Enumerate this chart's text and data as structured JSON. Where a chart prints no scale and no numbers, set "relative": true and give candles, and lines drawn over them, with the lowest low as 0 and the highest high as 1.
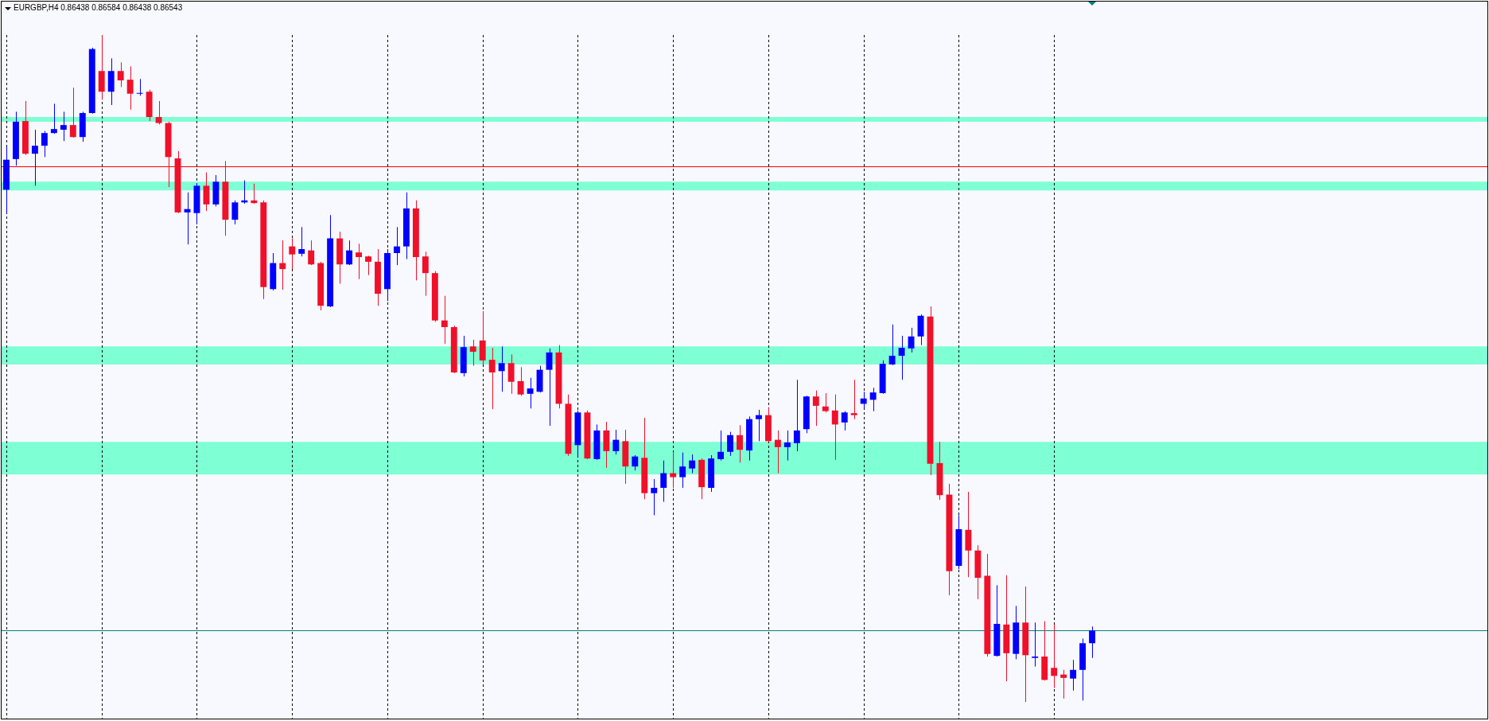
{
  "chart_data": {
    "type": "candlestick",
    "title": "EURGBP,H4 0.86438 0.86584 0.86438 0.86543",
    "relative": true,
    "categories": [
      null,
      null,
      null,
      null,
      null,
      null,
      null,
      null,
      null,
      null,
      null,
      null,
      null,
      null,
      null,
      null,
      null,
      null,
      null,
      null,
      null,
      null,
      null,
      null,
      null,
      null,
      null,
      null,
      null,
      null,
      null,
      null,
      null,
      null,
      null,
      null,
      null,
      null,
      null,
      null,
      null,
      null,
      null,
      null,
      null,
      null,
      null,
      null,
      null,
      null,
      null,
      null,
      null,
      null,
      null,
      null,
      null,
      null,
      null,
      null,
      null,
      null,
      null,
      null,
      null,
      null,
      null,
      null,
      null,
      null,
      null,
      null,
      null,
      null,
      null,
      null,
      null,
      null,
      null,
      null,
      null,
      null,
      null,
      null,
      null,
      null,
      null,
      null,
      null,
      null,
      null,
      null,
      null,
      null,
      null,
      null,
      null,
      null,
      null,
      null,
      null,
      null,
      null,
      null,
      null,
      null,
      null,
      null,
      null,
      null,
      null,
      null,
      null,
      null,
      null
    ],
    "ohlc": [
      [
        0.768,
        0.832,
        0.733,
        0.813
      ],
      [
        0.814,
        0.885,
        0.804,
        0.87
      ],
      [
        0.871,
        0.901,
        0.82,
        0.822
      ],
      [
        0.822,
        0.858,
        0.774,
        0.834
      ],
      [
        0.834,
        0.856,
        0.817,
        0.853
      ],
      [
        0.853,
        0.897,
        0.852,
        0.859
      ],
      [
        0.858,
        0.885,
        0.841,
        0.865
      ],
      [
        0.865,
        0.921,
        0.846,
        0.847
      ],
      [
        0.847,
        0.885,
        0.84,
        0.883
      ],
      [
        0.883,
        0.981,
        0.882,
        0.979
      ],
      [
        0.946,
        1,
        0.903,
        0.915
      ],
      [
        0.915,
        0.965,
        0.895,
        0.946
      ],
      [
        0.946,
        0.959,
        0.922,
        0.932
      ],
      [
        0.933,
        0.953,
        0.888,
        0.912
      ],
      [
        0.912,
        0.934,
        0.909,
        0.913
      ],
      [
        0.915,
        0.918,
        0.871,
        0.877
      ],
      [
        0.877,
        0.901,
        0.866,
        0.868
      ],
      [
        0.868,
        0.87,
        0.772,
        0.817
      ],
      [
        0.815,
        0.826,
        0.733,
        0.734
      ],
      [
        0.734,
        0.764,
        0.686,
        0.739
      ],
      [
        0.733,
        0.778,
        0.716,
        0.774
      ],
      [
        0.774,
        0.794,
        0.736,
        0.746
      ],
      [
        0.746,
        0.79,
        0.743,
        0.78
      ],
      [
        0.78,
        0.811,
        0.699,
        0.723
      ],
      [
        0.723,
        0.752,
        0.716,
        0.749
      ],
      [
        0.749,
        0.782,
        0.747,
        0.752
      ],
      [
        0.752,
        0.777,
        0.747,
        0.748
      ],
      [
        0.749,
        0.752,
        0.604,
        0.622
      ],
      [
        0.619,
        0.673,
        0.617,
        0.658
      ],
      [
        0.658,
        0.692,
        0.618,
        0.649
      ],
      [
        0.683,
        0.695,
        0.649,
        0.671
      ],
      [
        0.672,
        0.712,
        0.668,
        0.679
      ],
      [
        0.677,
        0.692,
        0.655,
        0.656
      ],
      [
        0.658,
        0.66,
        0.587,
        0.594
      ],
      [
        0.593,
        0.73,
        0.592,
        0.695
      ],
      [
        0.695,
        0.705,
        0.627,
        0.656
      ],
      [
        0.656,
        0.692,
        0.655,
        0.677
      ],
      [
        0.674,
        0.687,
        0.634,
        0.667
      ],
      [
        0.668,
        0.669,
        0.64,
        0.66
      ],
      [
        0.66,
        0.679,
        0.594,
        0.612
      ],
      [
        0.619,
        0.679,
        0.601,
        0.673
      ],
      [
        0.673,
        0.712,
        0.655,
        0.683
      ],
      [
        0.683,
        0.764,
        0.664,
        0.74
      ],
      [
        0.74,
        0.752,
        0.632,
        0.667
      ],
      [
        0.668,
        0.675,
        0.609,
        0.643
      ],
      [
        0.643,
        0.646,
        0.57,
        0.572
      ],
      [
        0.572,
        0.609,
        0.537,
        0.562
      ],
      [
        0.562,
        0.564,
        0.493,
        0.494
      ],
      [
        0.493,
        0.549,
        0.488,
        0.532
      ],
      [
        0.533,
        0.543,
        0.504,
        0.525
      ],
      [
        0.542,
        0.586,
        0.506,
        0.512
      ],
      [
        0.513,
        0.531,
        0.439,
        0.494
      ],
      [
        0.496,
        0.533,
        0.465,
        0.508
      ],
      [
        0.508,
        0.521,
        0.462,
        0.48
      ],
      [
        0.481,
        0.502,
        0.459,
        0.461
      ],
      [
        0.462,
        0.486,
        0.44,
        0.47
      ],
      [
        0.465,
        0.504,
        0.464,
        0.498
      ],
      [
        0.498,
        0.53,
        0.414,
        0.524
      ],
      [
        0.524,
        0.535,
        0.44,
        0.447
      ],
      [
        0.447,
        0.461,
        0.369,
        0.372
      ],
      [
        0.385,
        0.437,
        0.368,
        0.434
      ],
      [
        0.434,
        0.437,
        0.364,
        0.365
      ],
      [
        0.364,
        0.416,
        0.363,
        0.407
      ],
      [
        0.407,
        0.42,
        0.351,
        0.376
      ],
      [
        0.376,
        0.408,
        0.371,
        0.393
      ],
      [
        0.391,
        0.408,
        0.327,
        0.353
      ],
      [
        0.353,
        0.37,
        0.347,
        0.368
      ],
      [
        0.366,
        0.426,
        0.304,
        0.313
      ],
      [
        0.313,
        0.334,
        0.28,
        0.321
      ],
      [
        0.321,
        0.362,
        0.3,
        0.343
      ],
      [
        0.343,
        0.375,
        0.321,
        0.337
      ],
      [
        0.337,
        0.374,
        0.321,
        0.353
      ],
      [
        0.35,
        0.371,
        0.343,
        0.362
      ],
      [
        0.363,
        0.365,
        0.304,
        0.322
      ],
      [
        0.321,
        0.37,
        0.315,
        0.365
      ],
      [
        0.364,
        0.407,
        0.362,
        0.375
      ],
      [
        0.375,
        0.405,
        0.369,
        0.4
      ],
      [
        0.4,
        0.415,
        0.359,
        0.378
      ],
      [
        0.377,
        0.428,
        0.362,
        0.424
      ],
      [
        0.424,
        0.438,
        0.391,
        0.43
      ],
      [
        0.43,
        0.442,
        0.39,
        0.391
      ],
      [
        0.393,
        0.407,
        0.343,
        0.382
      ],
      [
        0.382,
        0.407,
        0.362,
        0.389
      ],
      [
        0.388,
        0.483,
        0.376,
        0.407
      ],
      [
        0.409,
        0.459,
        0.403,
        0.458
      ],
      [
        0.458,
        0.467,
        0.414,
        0.444
      ],
      [
        0.443,
        0.463,
        0.434,
        0.436
      ],
      [
        0.437,
        0.461,
        0.363,
        0.416
      ],
      [
        0.419,
        0.436,
        0.407,
        0.434
      ],
      [
        0.433,
        0.483,
        0.424,
        0.43
      ],
      [
        0.447,
        0.465,
        0.44,
        0.455
      ],
      [
        0.453,
        0.471,
        0.436,
        0.464
      ],
      [
        0.463,
        0.512,
        0.462,
        0.507
      ],
      [
        0.506,
        0.566,
        0.505,
        0.519
      ],
      [
        0.519,
        0.549,
        0.483,
        0.531
      ],
      [
        0.53,
        0.561,
        0.524,
        0.548
      ],
      [
        0.548,
        0.581,
        0.535,
        0.579
      ],
      [
        0.578,
        0.593,
        0.34,
        0.357
      ],
      [
        0.358,
        0.39,
        0.303,
        0.31
      ],
      [
        0.311,
        0.327,
        0.16,
        0.196
      ],
      [
        0.204,
        0.28,
        0.199,
        0.259
      ],
      [
        0.258,
        0.315,
        0.187,
        0.227
      ],
      [
        0.227,
        0.235,
        0.154,
        0.186
      ],
      [
        0.189,
        0.222,
        0.068,
        0.072
      ],
      [
        0.069,
        0.175,
        0.068,
        0.117
      ],
      [
        0.116,
        0.19,
        0.031,
        0.073
      ],
      [
        0.072,
        0.144,
        0.064,
        0.119
      ],
      [
        0.119,
        0.173,
        0,
        0.07
      ],
      [
        0.066,
        0.119,
        0.053,
        0.068
      ],
      [
        0.068,
        0.121,
        0.032,
        0.033
      ],
      [
        0.051,
        0.116,
        0.021,
        0.039
      ],
      [
        0.041,
        0.048,
        0.005,
        0.036
      ],
      [
        0.035,
        0.063,
        0.017,
        0.048
      ],
      [
        0.048,
        0.095,
        0.002,
        0.088
      ],
      [
        0.088,
        0.113,
        0.066,
        0.107
      ]
    ],
    "colors": [
      "#0000ff",
      "#0000ff",
      "#f0102a",
      "#0000ff",
      "#0000ff",
      "#0000ff",
      "#0000ff",
      "#f0102a",
      "#0000ff",
      "#0000ff",
      "#f0102a",
      "#0000ff",
      "#f0102a",
      "#f0102a",
      "#0000ff",
      "#f0102a",
      "#f0102a",
      "#f0102a",
      "#f0102a",
      "#0000ff",
      "#0000ff",
      "#f0102a",
      "#0000ff",
      "#f0102a",
      "#0000ff",
      "#0000ff",
      "#f0102a",
      "#f0102a",
      "#0000ff",
      "#f0102a",
      "#f0102a",
      "#0000ff",
      "#f0102a",
      "#f0102a",
      "#0000ff",
      "#f0102a",
      "#0000ff",
      "#f0102a",
      "#f0102a",
      "#f0102a",
      "#0000ff",
      "#0000ff",
      "#0000ff",
      "#f0102a",
      "#f0102a",
      "#f0102a",
      "#f0102a",
      "#f0102a",
      "#0000ff",
      "#f0102a",
      "#f0102a",
      "#f0102a",
      "#0000ff",
      "#f0102a",
      "#f0102a",
      "#0000ff",
      "#0000ff",
      "#0000ff",
      "#f0102a",
      "#f0102a",
      "#0000ff",
      "#f0102a",
      "#0000ff",
      "#f0102a",
      "#0000ff",
      "#f0102a",
      "#0000ff",
      "#f0102a",
      "#0000ff",
      "#0000ff",
      "#f0102a",
      "#0000ff",
      "#0000ff",
      "#f0102a",
      "#0000ff",
      "#0000ff",
      "#0000ff",
      "#f0102a",
      "#0000ff",
      "#0000ff",
      "#f0102a",
      "#f0102a",
      "#0000ff",
      "#0000ff",
      "#0000ff",
      "#f0102a",
      "#f0102a",
      "#f0102a",
      "#0000ff",
      "#f0102a",
      "#0000ff",
      "#0000ff",
      "#0000ff",
      "#0000ff",
      "#0000ff",
      "#0000ff",
      "#0000ff",
      "#f0102a",
      "#f0102a",
      "#f0102a",
      "#0000ff",
      "#f0102a",
      "#f0102a",
      "#f0102a",
      "#0000ff",
      "#f0102a",
      "#0000ff",
      "#f0102a",
      "#0000ff",
      "#f0102a",
      "#f0102a",
      "#f0102a",
      "#0000ff",
      "#0000ff",
      "#0000ff"
    ],
    "ref_lines": [
      {
        "axis": "y",
        "value": 0.803,
        "color": "#ff0000"
      },
      {
        "axis": "y",
        "value": 0.107,
        "color": "#008080"
      }
    ],
    "bands": [
      {
        "axis": "y",
        "from": 0.87,
        "to": 0.877,
        "color": "#7fffd4"
      },
      {
        "axis": "y",
        "from": 0.767,
        "to": 0.78,
        "color": "#7fffd4"
      },
      {
        "axis": "y",
        "from": 0.506,
        "to": 0.533,
        "color": "#7fffd4"
      },
      {
        "axis": "y",
        "from": 0.341,
        "to": 0.39,
        "color": "#7fffd4"
      }
    ],
    "grid": "x"
  }
}
